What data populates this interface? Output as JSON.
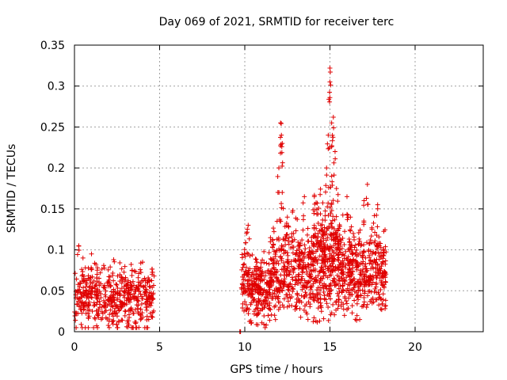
{
  "chart_data": {
    "type": "scatter",
    "title": "Day 069 of 2021, SRMTID for receiver terc",
    "xlabel": "GPS time / hours",
    "ylabel": "SRMTID / TECUs",
    "xlim": [
      0,
      24
    ],
    "ylim": [
      0,
      0.35
    ],
    "xticks": [
      0,
      5,
      10,
      15,
      20
    ],
    "xtick_labels": [
      "0",
      "5",
      "10",
      "15",
      "20"
    ],
    "yticks": [
      0,
      0.05,
      0.1,
      0.15,
      0.2,
      0.25,
      0.3,
      0.35
    ],
    "ytick_labels": [
      "0",
      "0.05",
      "0.1",
      "0.15",
      "0.2",
      "0.25",
      "0.3",
      "0.35"
    ],
    "grid": true,
    "marker": "plus",
    "series_color": "#e00000",
    "segments": [
      {
        "x_start": 0.0,
        "x_end": 4.7,
        "y_center": 0.042,
        "y_spread": 0.018,
        "count": 520,
        "peaks": [
          [
            0.25,
            0.105
          ],
          [
            0.5,
            0.09
          ],
          [
            1.0,
            0.095
          ],
          [
            2.3,
            0.088
          ],
          [
            4.0,
            0.085
          ]
        ]
      },
      {
        "x_start": 9.7,
        "x_end": 9.75,
        "y_center": 0.0,
        "y_spread": 0.0,
        "count": 6,
        "peaks": []
      },
      {
        "x_start": 9.8,
        "x_end": 11.5,
        "y_center": 0.052,
        "y_spread": 0.02,
        "count": 260,
        "peaks": [
          [
            10.2,
            0.13
          ],
          [
            10.1,
            0.12
          ],
          [
            10.7,
            0.085
          ]
        ]
      },
      {
        "x_start": 11.5,
        "x_end": 14.0,
        "y_center": 0.075,
        "y_spread": 0.028,
        "count": 380,
        "peaks": [
          [
            12.1,
            0.255
          ],
          [
            12.15,
            0.24
          ],
          [
            12.2,
            0.23
          ],
          [
            12.0,
            0.2
          ],
          [
            12.2,
            0.17
          ],
          [
            13.5,
            0.165
          ],
          [
            12.5,
            0.14
          ]
        ]
      },
      {
        "x_start": 14.0,
        "x_end": 15.6,
        "y_center": 0.09,
        "y_spread": 0.035,
        "count": 360,
        "peaks": [
          [
            15.0,
            0.322
          ],
          [
            15.0,
            0.305
          ],
          [
            15.2,
            0.262
          ],
          [
            15.1,
            0.255
          ],
          [
            14.9,
            0.24
          ],
          [
            15.3,
            0.22
          ],
          [
            14.8,
            0.2
          ],
          [
            15.1,
            0.19
          ]
        ]
      },
      {
        "x_start": 15.6,
        "x_end": 18.3,
        "y_center": 0.075,
        "y_spread": 0.025,
        "count": 420,
        "peaks": [
          [
            16.0,
            0.165
          ],
          [
            17.2,
            0.18
          ],
          [
            17.0,
            0.16
          ],
          [
            17.8,
            0.155
          ],
          [
            16.2,
            0.14
          ]
        ]
      }
    ]
  }
}
